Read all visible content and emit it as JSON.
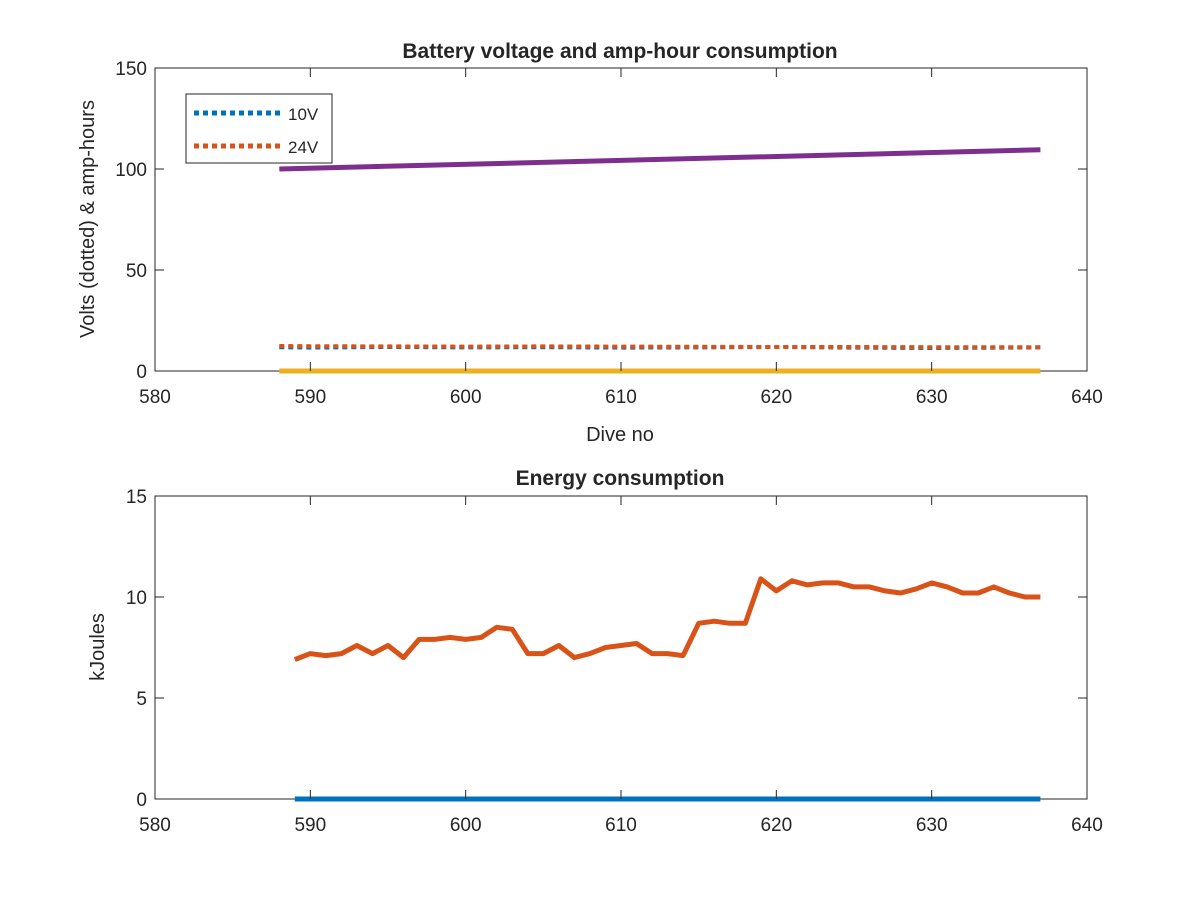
{
  "chart_data": [
    {
      "type": "line",
      "title": "Battery voltage and amp-hour consumption",
      "xlabel": "Dive no",
      "ylabel": "Volts (dotted) & amp-hours",
      "xlim": [
        580,
        640
      ],
      "ylim": [
        0,
        150
      ],
      "xticks": [
        "580",
        "590",
        "600",
        "610",
        "620",
        "630",
        "640"
      ],
      "yticks": [
        "0",
        "50",
        "100",
        "150"
      ],
      "grid": false,
      "legend": {
        "position": "top-left",
        "entries": [
          "10V",
          "24V"
        ]
      },
      "series": [
        {
          "name": "10V",
          "style": "dotted",
          "color": "#0072BD",
          "x": [
            588,
            590,
            595,
            600,
            605,
            610,
            615,
            620,
            625,
            630,
            635,
            637
          ],
          "y": [
            11.8,
            11.6,
            11.9,
            11.7,
            11.8,
            11.6,
            11.7,
            11.9,
            11.6,
            11.4,
            11.6,
            11.7
          ]
        },
        {
          "name": "24V",
          "style": "dotted",
          "color": "#D95319",
          "x": [
            588,
            590,
            595,
            600,
            605,
            610,
            615,
            620,
            625,
            630,
            635,
            637
          ],
          "y": [
            12.4,
            12.3,
            12.2,
            12.1,
            12.2,
            12.1,
            12.0,
            11.9,
            11.9,
            11.8,
            11.8,
            11.8
          ]
        },
        {
          "style": "solid",
          "color": "#EDB120",
          "x": [
            588,
            637
          ],
          "y": [
            0,
            0
          ]
        },
        {
          "style": "solid",
          "color": "#7E2F8E",
          "x": [
            588,
            637
          ],
          "y": [
            100,
            109.5
          ]
        }
      ]
    },
    {
      "type": "line",
      "title": "Energy consumption",
      "xlabel": "",
      "ylabel": "kJoules",
      "xlim": [
        580,
        640
      ],
      "ylim": [
        0,
        15
      ],
      "xticks": [
        "580",
        "590",
        "600",
        "610",
        "620",
        "630",
        "640"
      ],
      "yticks": [
        "0",
        "5",
        "10",
        "15"
      ],
      "grid": false,
      "series": [
        {
          "style": "solid",
          "color": "#0072BD",
          "x": [
            589,
            637
          ],
          "y": [
            0,
            0
          ]
        },
        {
          "style": "solid",
          "color": "#D95319",
          "x": [
            589,
            590,
            591,
            592,
            593,
            594,
            595,
            596,
            597,
            598,
            599,
            600,
            601,
            602,
            603,
            604,
            605,
            606,
            607,
            608,
            609,
            610,
            611,
            612,
            613,
            614,
            615,
            616,
            617,
            618,
            619,
            620,
            621,
            622,
            623,
            624,
            625,
            626,
            627,
            628,
            629,
            630,
            631,
            632,
            633,
            634,
            635,
            636,
            637
          ],
          "y": [
            6.9,
            7.2,
            7.1,
            7.2,
            7.6,
            7.2,
            7.6,
            7.0,
            7.9,
            7.9,
            8.0,
            7.9,
            8.0,
            8.5,
            8.4,
            7.2,
            7.2,
            7.6,
            7.0,
            7.2,
            7.5,
            7.6,
            7.7,
            7.2,
            7.2,
            7.1,
            8.7,
            8.8,
            8.7,
            8.7,
            10.9,
            10.3,
            10.8,
            10.6,
            10.7,
            10.7,
            10.5,
            10.5,
            10.3,
            10.2,
            10.4,
            10.7,
            10.5,
            10.2,
            10.2,
            10.5,
            10.2,
            10.0,
            10.0
          ]
        }
      ]
    }
  ]
}
